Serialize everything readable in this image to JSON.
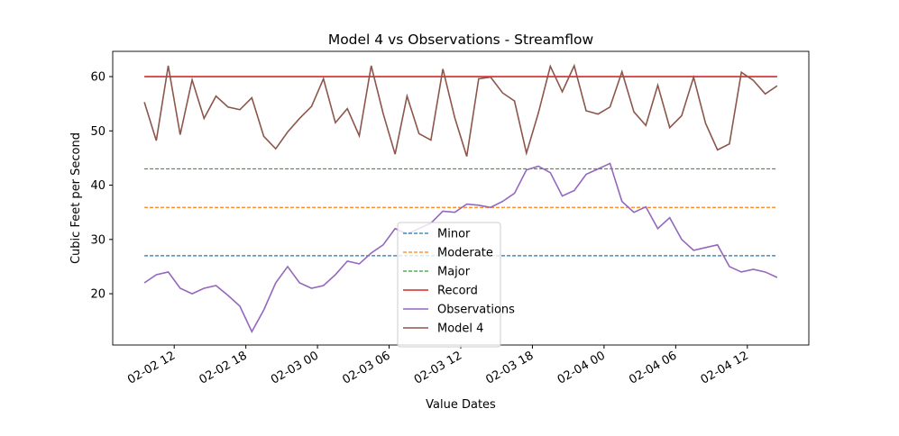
{
  "chart_data": {
    "type": "line",
    "title": "Model 4 vs Observations - Streamflow",
    "x_label": "Value Dates",
    "y_label": "Cubic Feet per Second",
    "x": [
      "02-02 09:30",
      "02-02 10:30",
      "02-02 11:30",
      "02-02 12:30",
      "02-02 13:30",
      "02-02 14:30",
      "02-02 15:30",
      "02-02 16:30",
      "02-02 17:30",
      "02-02 18:30",
      "02-02 19:30",
      "02-02 20:30",
      "02-02 21:30",
      "02-02 22:30",
      "02-02 23:30",
      "02-03 00:30",
      "02-03 01:30",
      "02-03 02:30",
      "02-03 03:30",
      "02-03 04:30",
      "02-03 05:30",
      "02-03 06:30",
      "02-03 07:30",
      "02-03 08:30",
      "02-03 09:30",
      "02-03 10:30",
      "02-03 11:30",
      "02-03 12:30",
      "02-03 13:30",
      "02-03 14:30",
      "02-03 15:30",
      "02-03 16:30",
      "02-03 17:30",
      "02-03 18:30",
      "02-03 19:30",
      "02-03 20:30",
      "02-03 21:30",
      "02-03 22:30",
      "02-03 23:30",
      "02-04 00:30",
      "02-04 01:30",
      "02-04 02:30",
      "02-04 03:30",
      "02-04 04:30",
      "02-04 05:30",
      "02-04 06:30",
      "02-04 07:30",
      "02-04 08:30",
      "02-04 09:30",
      "02-04 10:30",
      "02-04 11:30",
      "02-04 12:30",
      "02-04 13:30",
      "02-04 14:30"
    ],
    "series": [
      {
        "name": "Minor",
        "color": "#1f77b4",
        "style": "dashed",
        "value": 27
      },
      {
        "name": "Moderate",
        "color": "#ff7f0e",
        "style": "dashed",
        "value": 35.9
      },
      {
        "name": "Major",
        "color": "#2ca02c",
        "style": "dashed",
        "value": 43
      },
      {
        "name": "Record",
        "color": "#d62728",
        "style": "solid",
        "value": 60
      },
      {
        "name": "Observations",
        "color": "#9467bd",
        "style": "solid",
        "values": [
          22,
          23.5,
          24,
          21,
          20,
          21,
          21.5,
          19.7,
          17.7,
          13,
          17,
          22,
          25,
          22,
          21,
          21.5,
          23.5,
          26,
          25.5,
          27.5,
          29,
          32,
          31,
          32,
          33,
          35.2,
          35,
          36.5,
          36.3,
          35.9,
          37,
          38.5,
          42.8,
          43.5,
          42.3,
          38,
          39,
          42,
          43,
          44,
          37,
          35,
          36,
          32,
          34,
          30,
          28,
          28.5,
          29,
          25,
          24,
          24.5,
          24,
          23
        ]
      },
      {
        "name": "Model 4",
        "color": "#8c564b",
        "style": "solid",
        "values": [
          55.3,
          48.2,
          62,
          49.3,
          59.4,
          52.3,
          56.4,
          54.4,
          53.9,
          56.1,
          49,
          46.7,
          49.8,
          52.3,
          54.5,
          59.6,
          51.5,
          54.1,
          49.1,
          62,
          53.2,
          45.7,
          56.4,
          49.5,
          48.3,
          61.4,
          52.4,
          45.3,
          59.6,
          59.9,
          57,
          55.5,
          45.9,
          53.3,
          61.9,
          57.2,
          62,
          53.7,
          53.1,
          54.4,
          60.9,
          53.5,
          51,
          58.4,
          50.6,
          52.8,
          59.9,
          51.4,
          46.5,
          47.6,
          60.8,
          59.3,
          56.8,
          58.3
        ]
      }
    ],
    "xlim": [
      "02-02 06:51",
      "02-04 17:09"
    ],
    "xticks": [
      "02-02 12",
      "02-02 18",
      "02-03 00",
      "02-03 06",
      "02-03 12",
      "02-03 18",
      "02-04 00",
      "02-04 06",
      "02-04 12"
    ],
    "ylim": [
      10.55,
      64.65
    ],
    "yticks": [
      20,
      30,
      40,
      50,
      60
    ]
  }
}
